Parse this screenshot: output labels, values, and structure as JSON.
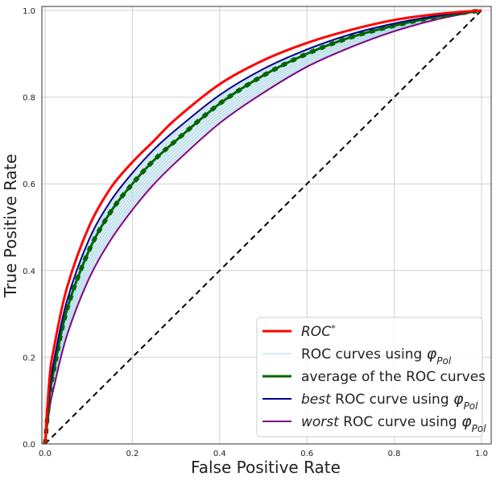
{
  "chart_data": {
    "type": "line",
    "xlabel": "False Positive Rate",
    "ylabel": "True Positive Rate",
    "xlim": [
      0,
      1
    ],
    "ylim": [
      0,
      1
    ],
    "xticks": [
      "0.0",
      "0.2",
      "0.4",
      "0.6",
      "0.8",
      "1.0"
    ],
    "yticks": [
      "0.0",
      "0.2",
      "0.4",
      "0.6",
      "0.8",
      "1.0"
    ],
    "grid": true,
    "legend_position": "bottom-right",
    "x": [
      0,
      0.01,
      0.02,
      0.05,
      0.1,
      0.15,
      0.2,
      0.25,
      0.3,
      0.4,
      0.5,
      0.6,
      0.7,
      0.8,
      0.9,
      1.0
    ],
    "series": [
      {
        "name": "ROC*",
        "legend_parts": [
          {
            "t": "ROC",
            "it": true
          },
          {
            "t": "*",
            "sup": true
          }
        ],
        "color": "#ff0000",
        "style": "solid",
        "values": [
          0,
          0.15,
          0.22,
          0.36,
          0.5,
          0.59,
          0.65,
          0.7,
          0.75,
          0.83,
          0.885,
          0.925,
          0.955,
          0.978,
          0.992,
          1.0
        ]
      },
      {
        "name": "best ROC curve using φPol",
        "legend_parts": [
          {
            "t": "best",
            "it": true
          },
          {
            "t": " ROC curve using "
          },
          {
            "t": "φ",
            "it": true
          },
          {
            "t": "Pol",
            "sub": true,
            "it": true
          }
        ],
        "color": "#00008b",
        "style": "solid",
        "values": [
          0,
          0.12,
          0.19,
          0.33,
          0.47,
          0.56,
          0.625,
          0.68,
          0.725,
          0.805,
          0.865,
          0.91,
          0.945,
          0.97,
          0.988,
          1.0
        ]
      },
      {
        "name": "average of the ROC curves",
        "legend_parts": [
          {
            "t": "average of the ROC curves"
          }
        ],
        "color": "#006400",
        "style": "solid-dashed",
        "values": [
          0,
          0.11,
          0.17,
          0.31,
          0.445,
          0.535,
          0.6,
          0.655,
          0.7,
          0.785,
          0.85,
          0.9,
          0.938,
          0.965,
          0.986,
          1.0
        ]
      },
      {
        "name": "worst ROC curve using φPol",
        "legend_parts": [
          {
            "t": "worst",
            "it": true
          },
          {
            "t": " ROC curve using "
          },
          {
            "t": "φ",
            "it": true
          },
          {
            "t": "Pol",
            "sub": true,
            "it": true
          }
        ],
        "color": "#800080",
        "style": "solid",
        "values": [
          0,
          0.08,
          0.13,
          0.25,
          0.38,
          0.47,
          0.54,
          0.6,
          0.65,
          0.74,
          0.81,
          0.87,
          0.915,
          0.952,
          0.98,
          1.0
        ]
      },
      {
        "name": "diagonal",
        "color": "#000000",
        "style": "dashed",
        "values": [
          0,
          0.01,
          0.02,
          0.05,
          0.1,
          0.15,
          0.2,
          0.25,
          0.3,
          0.4,
          0.5,
          0.6,
          0.7,
          0.8,
          0.9,
          1.0
        ]
      }
    ],
    "band": {
      "name": "ROC curves using φPol",
      "legend_parts": [
        {
          "t": "ROC curves using "
        },
        {
          "t": "φ",
          "it": true
        },
        {
          "t": "Pol",
          "sub": true,
          "it": true
        }
      ],
      "color": "#add8e6",
      "fill": "#c6e2ec"
    },
    "legend_order": [
      "ROC*",
      "ROC curves using φPol",
      "average of the ROC curves",
      "best ROC curve using φPol",
      "worst ROC curve using φPol"
    ]
  }
}
